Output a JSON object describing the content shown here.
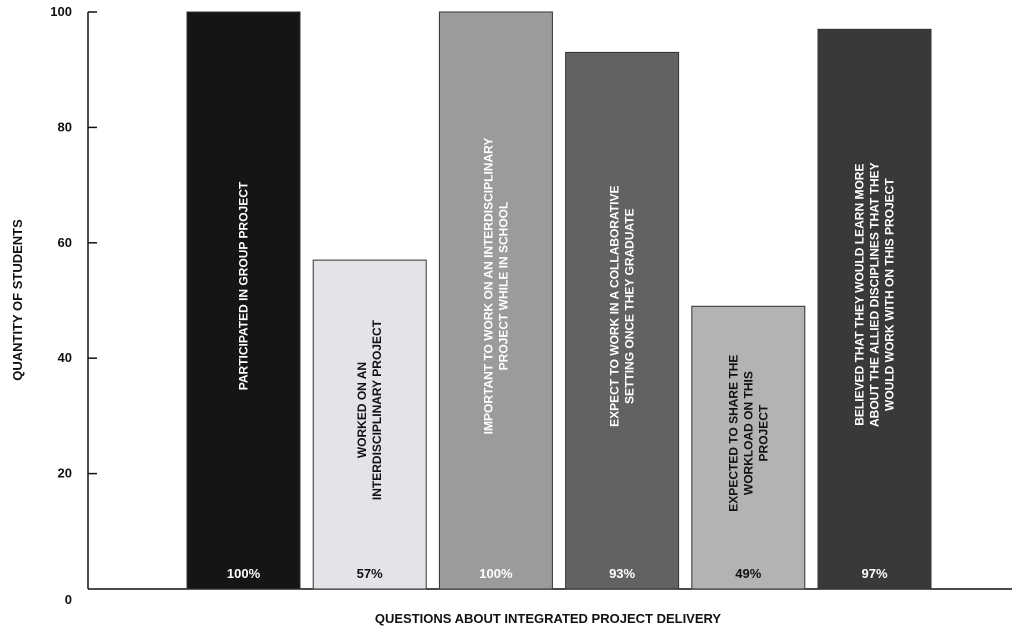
{
  "chart_data": {
    "type": "bar",
    "title": "",
    "xlabel": "QUESTIONS ABOUT INTEGRATED PROJECT DELIVERY",
    "ylabel": "QUANTITY OF STUDENTS",
    "ylim": [
      0,
      100
    ],
    "yticks": [
      0,
      20,
      40,
      60,
      80,
      100
    ],
    "grid": false,
    "categories": [
      [
        "PARTICIPATED IN GROUP PROJECT"
      ],
      [
        "WORKED ON AN",
        "INTERDISCIPLINARY PROJECT"
      ],
      [
        "IMPORTANT TO WORK ON AN INTERDISCIPLINARY",
        "PROJECT WHILE IN SCHOOL"
      ],
      [
        "EXPECT TO WORK IN A COLLABORATIVE",
        "SETTING ONCE THEY GRADUATE"
      ],
      [
        "EXPECTED TO SHARE THE",
        "WORKLOAD ON THIS",
        "PROJECT"
      ],
      [
        "BELIEVED THAT THEY WOULD LEARN MORE",
        "ABOUT THE ALLIED DISCIPLINES THAT THEY",
        "WOULD WORK WITH ON THIS PROJECT"
      ]
    ],
    "values": [
      100,
      57,
      100,
      93,
      49,
      97
    ],
    "value_labels": [
      "100%",
      "57%",
      "100%",
      "93%",
      "49%",
      "97%"
    ],
    "colors": [
      "#151515",
      "#e4e3e8",
      "#9a9b9a",
      "#626262",
      "#b3b3b3",
      "#383938"
    ]
  }
}
